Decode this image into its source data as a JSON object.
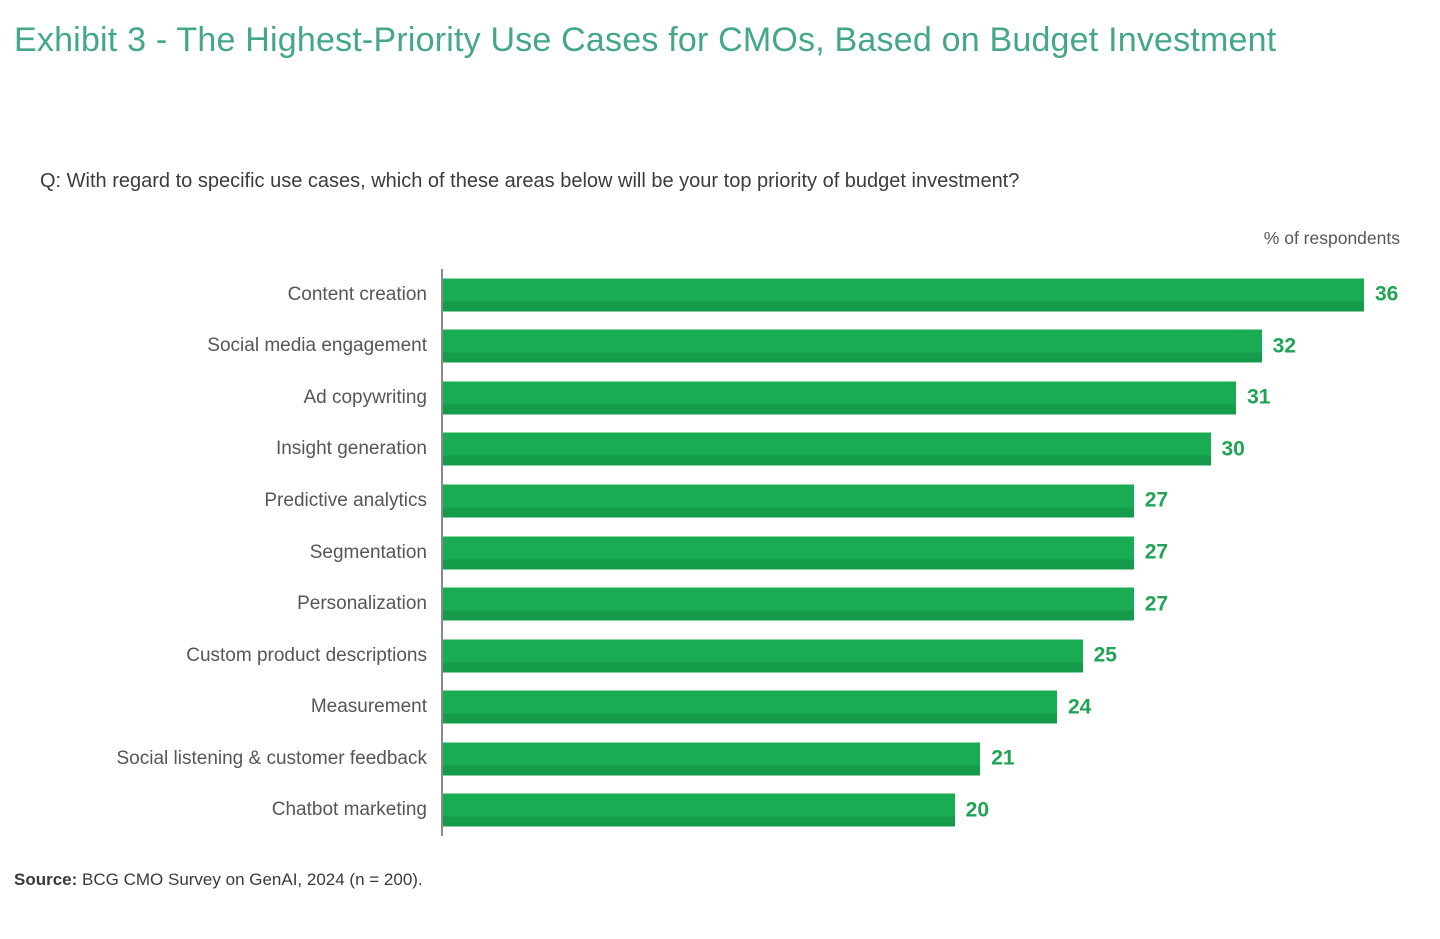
{
  "header": {
    "title": "Exhibit 3 - The Highest-Priority Use Cases for CMOs, Based on Budget Investment",
    "question": "Q: With regard to specific use cases, which of these areas below will be your top priority of budget investment?"
  },
  "chart_data": {
    "type": "bar",
    "orientation": "horizontal",
    "title": "Exhibit 3 - The Highest-Priority Use Cases for CMOs, Based on Budget Investment",
    "unit_label": "% of respondents",
    "xlabel": "% of respondents",
    "ylabel": "",
    "categories": [
      "Content creation",
      "Social media engagement",
      "Ad copywriting",
      "Insight generation",
      "Predictive analytics",
      "Segmentation",
      "Personalization",
      "Custom product descriptions",
      "Measurement",
      "Social listening & customer feedback",
      "Chatbot marketing"
    ],
    "values": [
      36,
      32,
      31,
      30,
      27,
      27,
      27,
      25,
      24,
      21,
      20
    ],
    "xlim": [
      0,
      36
    ],
    "grid": false,
    "legend": "none",
    "value_labels_position": "end-of-bar"
  },
  "footer": {
    "source_label": "Source:",
    "source_text": "BCG CMO Survey on GenAI, 2024 (n = 200)."
  },
  "colors": {
    "title_teal": "#44a78a",
    "bar_green": "#1aac52",
    "bar_green_dark": "#149c4a",
    "value_green": "#1fa455",
    "label_gray": "#565656",
    "text_dark": "#3c3c3c",
    "axis_gray": "#8a8a8a"
  }
}
